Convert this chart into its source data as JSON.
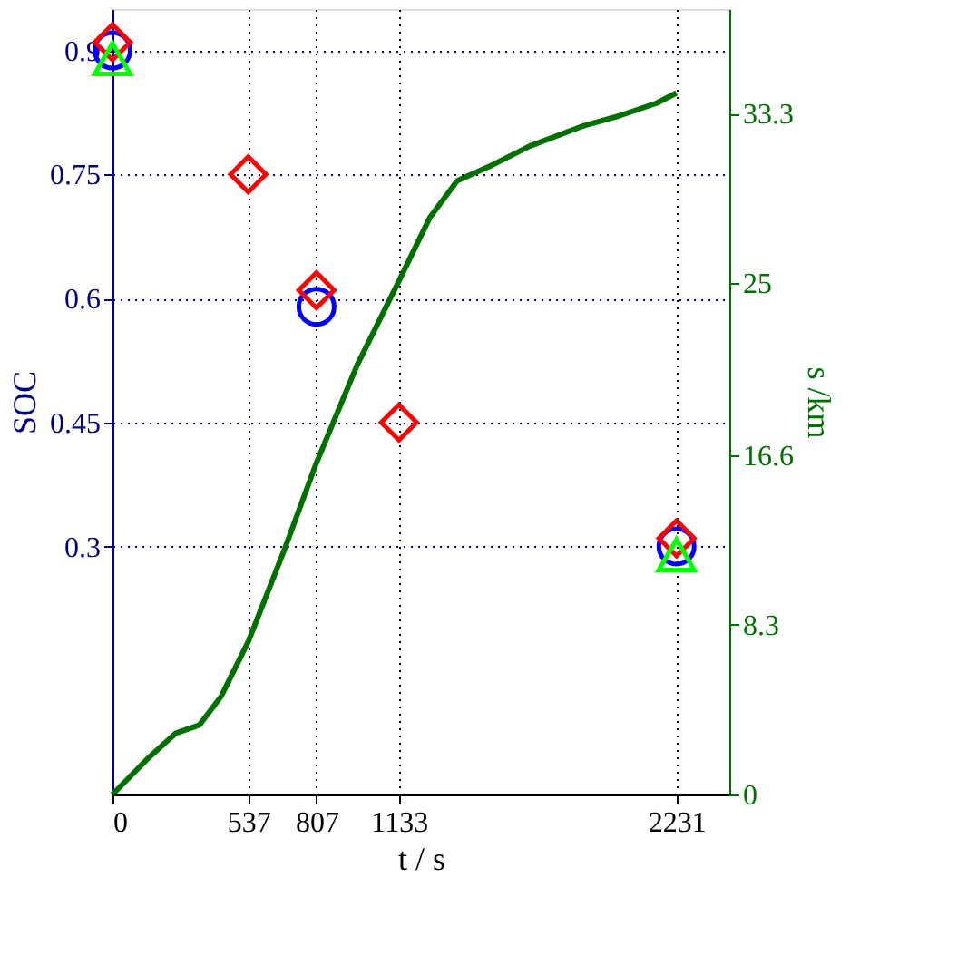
{
  "chart_data": {
    "type": "scatter",
    "xlabel": "t / s",
    "ylabel": "SOC",
    "y2label": "s /km",
    "xlim": [
      0,
      2440
    ],
    "xticks": [
      0,
      537,
      807,
      1133,
      2231
    ],
    "ylim": [
      0,
      0.95
    ],
    "yticks": [
      0.3,
      0.45,
      0.6,
      0.75,
      0.9
    ],
    "y2lim": [
      0,
      38.4
    ],
    "y2ticks": [
      0,
      8.3,
      16.6,
      25,
      33.3
    ],
    "grid": true,
    "series": [
      {
        "marker": "circle",
        "color": "#0000ff",
        "x": [
          0,
          807,
          2231
        ],
        "values": [
          0.9,
          0.59,
          0.3
        ]
      },
      {
        "marker": "diamond",
        "color": "#ff0000",
        "x": [
          0,
          537,
          807,
          1133,
          2231
        ],
        "values": [
          0.91,
          0.75,
          0.61,
          0.45,
          0.31
        ]
      },
      {
        "marker": "triangle",
        "color": "#00ff00",
        "x": [
          0,
          2231
        ],
        "values": [
          0.89,
          0.29
        ]
      },
      {
        "type": "line",
        "axis": "y2",
        "color": "#007000",
        "x": [
          0,
          143,
          251,
          344,
          430,
          538,
          681,
          803,
          968,
          1133,
          1255,
          1363,
          1506,
          1650,
          1865,
          2009,
          2152,
          2231
        ],
        "values": [
          0,
          1.8,
          3.0,
          3.4,
          4.8,
          7.5,
          12.0,
          16.1,
          21.0,
          25.1,
          28.2,
          30.0,
          30.8,
          31.7,
          32.7,
          33.2,
          33.8,
          34.3
        ]
      }
    ]
  }
}
